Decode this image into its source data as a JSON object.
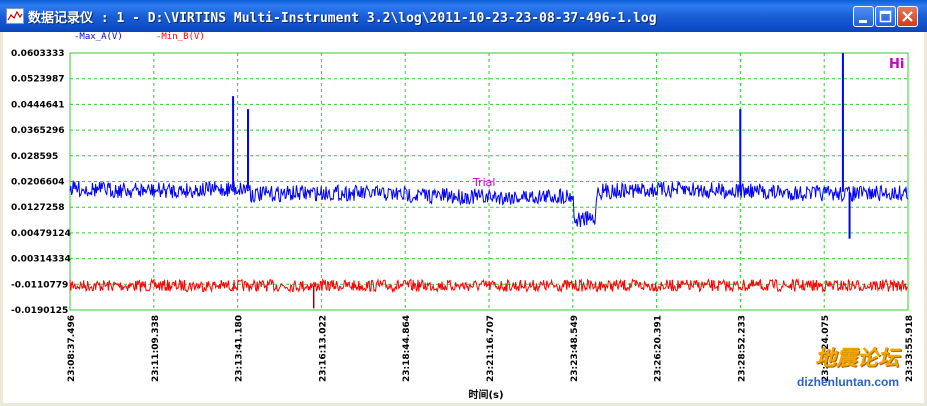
{
  "window": {
    "title": "数据记录仪 : 1 - D:\\VIRTINS Multi-Instrument 3.2\\log\\2011-10-23-23-08-37-496-1.log"
  },
  "legend": {
    "max_a": "-Max_A(V)",
    "min_b": "-Min_B(V)"
  },
  "colors": {
    "grid": "#33cc33",
    "series_a": "#0000ff",
    "series_b": "#ff0000",
    "annotation": "#cc00cc"
  },
  "chart_data": {
    "type": "line",
    "xlabel": "时间(s)",
    "x_ticks": [
      "23:08:37.496",
      "23:11:09.338",
      "23:13:41.180",
      "23:16:13.022",
      "23:18:44.864",
      "23:21:16.707",
      "23:23:48.549",
      "23:26:20.391",
      "23:28:52.233",
      "23:31:24.075",
      "23:33:55.918"
    ],
    "y_ticks": [
      "0.0603333",
      "0.0523987",
      "0.0444641",
      "0.0365296",
      "0.028595",
      "0.0206604",
      "0.0127258",
      "0.00479124",
      "0.00314334",
      "-0.0110779",
      "-0.0190125"
    ],
    "ylim": [
      -0.0190125,
      0.0603333
    ],
    "xrange": [
      "23:08:37.496",
      "23:33:55.918"
    ],
    "grid": true,
    "series": [
      {
        "name": "Max_A(V)",
        "color": "#0000ff",
        "baseline_approx": 0.018,
        "segments": [
          {
            "from": "23:08:37.496",
            "to": "23:14:05",
            "level": 0.0185
          },
          {
            "from": "23:14:05",
            "to": "23:23:50",
            "level": 0.0165
          },
          {
            "from": "23:23:50",
            "to": "23:24:30",
            "level": 0.009
          },
          {
            "from": "23:24:30",
            "to": "23:33:55.918",
            "level": 0.0175
          }
        ],
        "spikes": [
          {
            "x": "23:13:33",
            "y": 0.047
          },
          {
            "x": "23:14:00",
            "y": 0.043
          },
          {
            "x": "23:28:52",
            "y": 0.043
          },
          {
            "x": "23:31:58",
            "y": 0.0603
          },
          {
            "x": "23:32:10",
            "y": 0.003
          }
        ]
      },
      {
        "name": "Min_B(V)",
        "color": "#ff0000",
        "baseline_approx": -0.0115,
        "spikes": [
          {
            "x": "23:15:59",
            "y": -0.0185
          }
        ]
      }
    ],
    "annotations": [
      "Trial",
      "Hi"
    ]
  },
  "watermark": {
    "cn": "地震论坛",
    "url": "dizhenluntan.com"
  }
}
